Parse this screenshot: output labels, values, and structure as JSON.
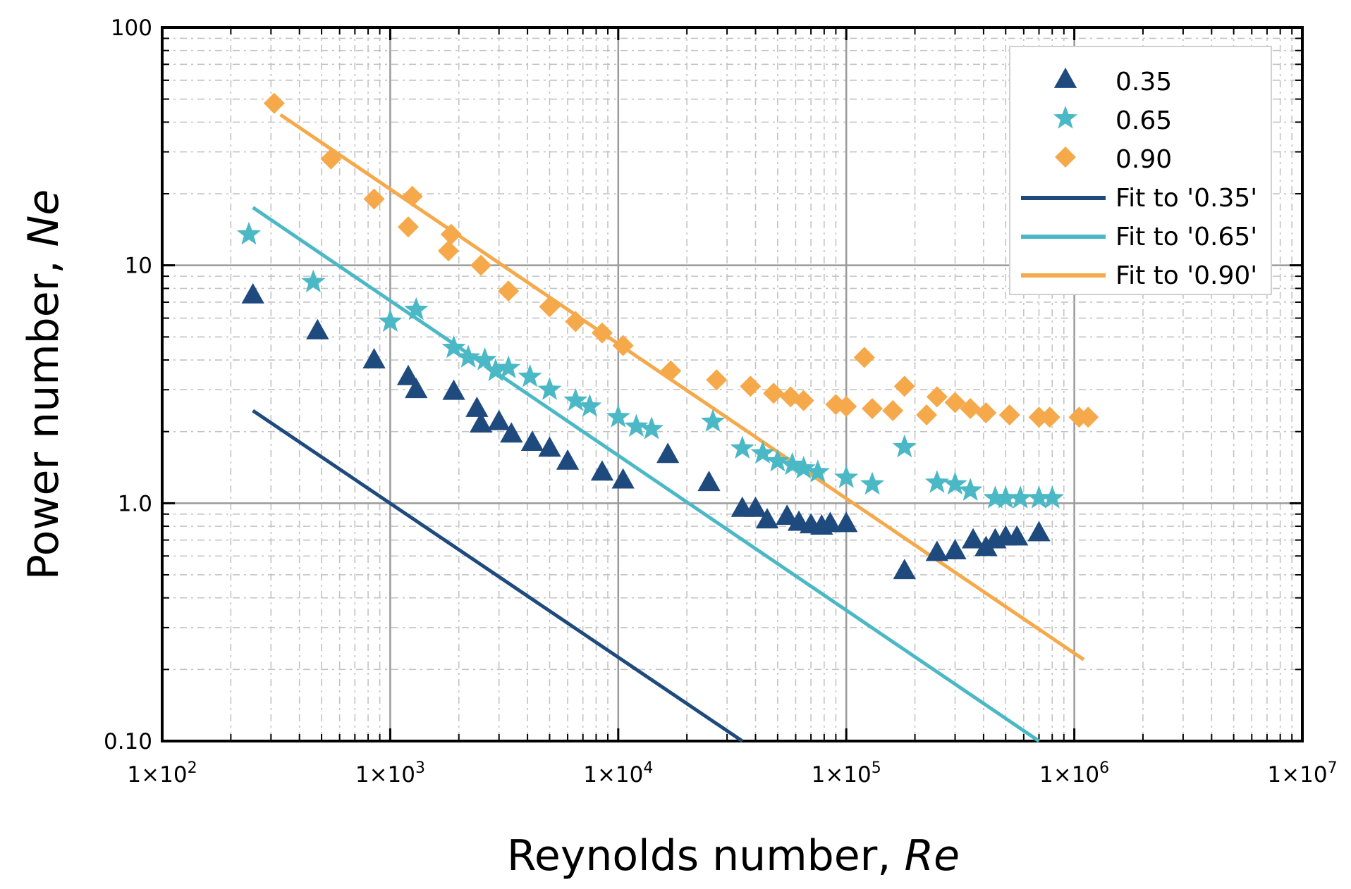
{
  "chart_data": {
    "type": "scatter",
    "xscale": "log",
    "yscale": "log",
    "xlim": [
      100,
      10000000
    ],
    "ylim": [
      0.1,
      100
    ],
    "grid": true,
    "xlabel": "Reynolds number, ",
    "xlabel_italic": "Re",
    "ylabel": "Power number, ",
    "ylabel_italic": "Ne",
    "x_tick_labels": [
      {
        "value": 100,
        "label": "1×10",
        "exp": "2"
      },
      {
        "value": 1000,
        "label": "1×10",
        "exp": "3"
      },
      {
        "value": 10000,
        "label": "1×10",
        "exp": "4"
      },
      {
        "value": 100000,
        "label": "1×10",
        "exp": "5"
      },
      {
        "value": 1000000,
        "label": "1×10",
        "exp": "6"
      },
      {
        "value": 10000000,
        "label": "1×10",
        "exp": "7"
      }
    ],
    "y_tick_labels": [
      {
        "value": 0.1,
        "label": "0.10"
      },
      {
        "value": 1,
        "label": "1.0"
      },
      {
        "value": 10,
        "label": "10"
      },
      {
        "value": 100,
        "label": "100"
      }
    ],
    "legend_position": "top-right",
    "series": [
      {
        "name": "0.35",
        "marker": "triangle",
        "color": "#1f4a7e",
        "x": [
          250,
          480,
          850,
          1200,
          1300,
          1900,
          2400,
          2500,
          3000,
          3400,
          4200,
          5000,
          6000,
          8500,
          10500,
          16500,
          25000,
          35000,
          40000,
          45000,
          55000,
          62000,
          70000,
          78000,
          85000,
          100000,
          180000,
          250000,
          300000,
          360000,
          410000,
          450000,
          500000,
          560000,
          700000
        ],
        "y": [
          7.5,
          5.3,
          4.0,
          3.4,
          3.0,
          2.95,
          2.5,
          2.15,
          2.2,
          1.95,
          1.8,
          1.7,
          1.5,
          1.35,
          1.25,
          1.6,
          1.22,
          0.95,
          0.95,
          0.85,
          0.88,
          0.83,
          0.81,
          0.8,
          0.82,
          0.82,
          0.52,
          0.62,
          0.63,
          0.7,
          0.65,
          0.7,
          0.72,
          0.72,
          0.75
        ]
      },
      {
        "name": "0.65",
        "marker": "star",
        "color": "#4bb8c6",
        "x": [
          240,
          460,
          1000,
          1300,
          1900,
          2200,
          2600,
          2900,
          3300,
          4100,
          5000,
          6500,
          7500,
          10000,
          12000,
          14000,
          26000,
          35000,
          43000,
          50000,
          58000,
          65000,
          75000,
          100000,
          130000,
          180000,
          250000,
          300000,
          350000,
          450000,
          500000,
          580000,
          700000,
          800000
        ],
        "y": [
          13.5,
          8.5,
          5.8,
          6.5,
          4.5,
          4.1,
          4.0,
          3.6,
          3.7,
          3.4,
          3.0,
          2.7,
          2.55,
          2.3,
          2.1,
          2.05,
          2.2,
          1.7,
          1.62,
          1.5,
          1.45,
          1.4,
          1.35,
          1.28,
          1.2,
          1.72,
          1.22,
          1.2,
          1.13,
          1.05,
          1.05,
          1.05,
          1.05,
          1.05
        ]
      },
      {
        "name": "0.90",
        "marker": "diamond",
        "color": "#f5a94a",
        "x": [
          310,
          550,
          850,
          1200,
          1250,
          1800,
          1850,
          2500,
          3300,
          5000,
          6500,
          8500,
          10500,
          17000,
          27000,
          38000,
          48000,
          57000,
          65000,
          90000,
          100000,
          120000,
          130000,
          160000,
          180000,
          225000,
          250000,
          300000,
          350000,
          410000,
          520000,
          700000,
          780000,
          1050000,
          1150000
        ],
        "y": [
          48,
          28,
          19,
          14.5,
          19.5,
          11.5,
          13.5,
          10,
          7.8,
          6.7,
          5.8,
          5.2,
          4.6,
          3.6,
          3.3,
          3.1,
          2.9,
          2.8,
          2.7,
          2.6,
          2.55,
          4.1,
          2.5,
          2.45,
          3.1,
          2.35,
          2.8,
          2.65,
          2.5,
          2.4,
          2.35,
          2.3,
          2.3,
          2.3,
          2.3
        ]
      }
    ],
    "fits": [
      {
        "name": "Fit to '0.35'",
        "color": "#1f4a7e",
        "x": [
          250,
          35000
        ],
        "y": [
          2.45,
          0.1
        ]
      },
      {
        "name": "Fit to '0.65'",
        "color": "#4bb8c6",
        "x": [
          250,
          700000
        ],
        "y": [
          17.5,
          0.1
        ]
      },
      {
        "name": "Fit to '0.90'",
        "color": "#f5a94a",
        "x": [
          330,
          1100000
        ],
        "y": [
          43,
          0.22
        ]
      }
    ]
  }
}
